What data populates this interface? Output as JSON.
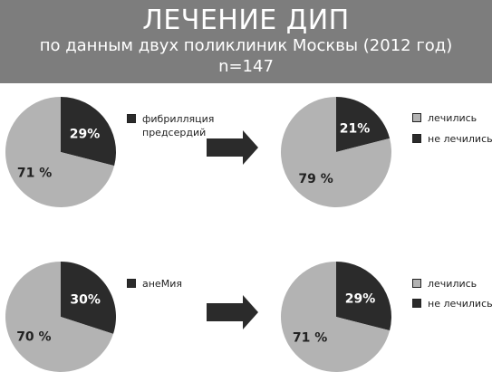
{
  "header": {
    "title": "ЛЕЧЕНИЕ ДИП",
    "subtitle": "по данным двух поликлиник Москвы (2012 год)",
    "n": "n=147"
  },
  "colors": {
    "dark": "#2b2b2b",
    "light": "#b3b3b3",
    "header_bg": "#7d7d7d"
  },
  "chart_data": [
    {
      "type": "pie",
      "slices": [
        {
          "label": "фибрилляция предсердий",
          "value": 29,
          "display": "29%",
          "color": "#2b2b2b"
        },
        {
          "label": "",
          "value": 71,
          "display": "71 %",
          "color": "#b3b3b3"
        }
      ],
      "legend": [
        "фибрилляция предсердий"
      ]
    },
    {
      "type": "pie",
      "slices": [
        {
          "label": "не лечились",
          "value": 21,
          "display": "21%",
          "color": "#2b2b2b"
        },
        {
          "label": "лечились",
          "value": 79,
          "display": "79 %",
          "color": "#b3b3b3"
        }
      ],
      "legend": [
        "лечились",
        "не лечились"
      ]
    },
    {
      "type": "pie",
      "slices": [
        {
          "label": "анеМия",
          "value": 30,
          "display": "30%",
          "color": "#2b2b2b"
        },
        {
          "label": "",
          "value": 70,
          "display": "70 %",
          "color": "#b3b3b3"
        }
      ],
      "legend": [
        "анеМия"
      ]
    },
    {
      "type": "pie",
      "slices": [
        {
          "label": "не лечились",
          "value": 29,
          "display": "29%",
          "color": "#2b2b2b"
        },
        {
          "label": "лечились",
          "value": 71,
          "display": "71 %",
          "color": "#b3b3b3"
        }
      ],
      "legend": [
        "лечились",
        "не лечились"
      ]
    }
  ],
  "legends": {
    "row1_left": "фибрилляция предсердий",
    "row1_right": [
      "лечились",
      "не лечились"
    ],
    "row2_left": "анеМия",
    "row2_right": [
      "лечились",
      "не лечились"
    ]
  },
  "arrows": [
    "arrow-right-icon",
    "arrow-right-icon"
  ]
}
